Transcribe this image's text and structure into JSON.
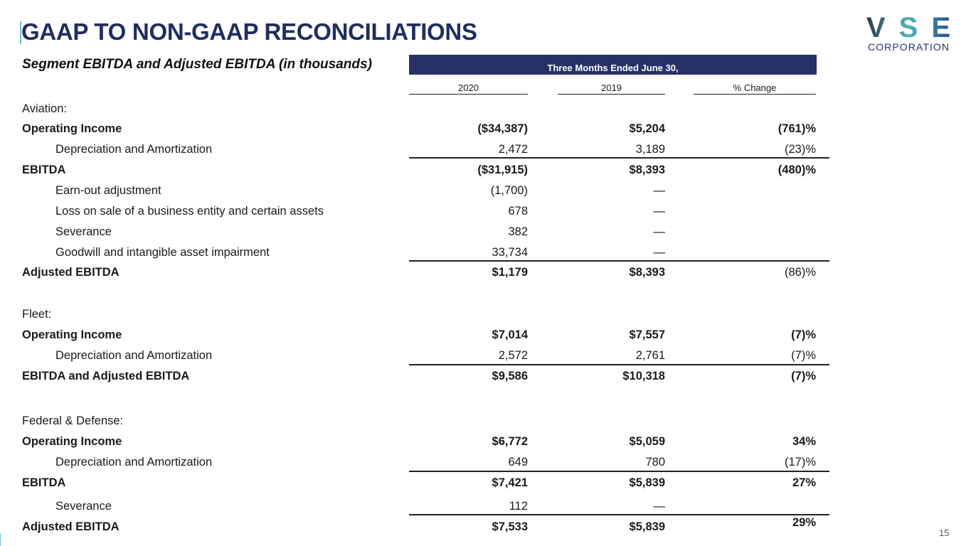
{
  "header": {
    "title": "GAAP TO NON-GAAP RECONCILIATIONS",
    "subtitle": "Segment EBITDA and Adjusted EBITDA (in thousands)",
    "period": "Three Months Ended June 30,"
  },
  "logo": {
    "name": "VSE",
    "sub": "CORPORATION"
  },
  "columns": [
    "2020",
    "2019",
    "% Change"
  ],
  "rows": [
    {
      "label": "Aviation:",
      "values": [
        "",
        "",
        ""
      ]
    },
    {
      "label": "Operating Income",
      "bold": true,
      "values": [
        "($34,387)",
        "$5,204",
        "(761)%"
      ]
    },
    {
      "label": "Depreciation and Amortization",
      "indent": true,
      "values": [
        "2,472",
        "3,189",
        "(23)%"
      ]
    },
    {
      "label": "EBITDA",
      "bold": true,
      "values": [
        "($31,915)",
        "$8,393",
        "(480)%"
      ]
    },
    {
      "label": "Earn-out adjustment",
      "indent": true,
      "values": [
        "(1,700)",
        "—",
        ""
      ]
    },
    {
      "label": "Loss on sale of a business entity and certain assets",
      "indent": true,
      "values": [
        "678",
        "—",
        ""
      ]
    },
    {
      "label": "Severance",
      "indent": true,
      "values": [
        "382",
        "—",
        ""
      ]
    },
    {
      "label": "Goodwill and intangible asset impairment",
      "indent": true,
      "values": [
        "33,734",
        "—",
        ""
      ]
    },
    {
      "label": "Adjusted EBITDA",
      "bold": true,
      "values": [
        "$1,179",
        "$8,393",
        "(86)%"
      ]
    },
    {
      "label": "Fleet:",
      "values": [
        "",
        "",
        ""
      ]
    },
    {
      "label": "Operating Income",
      "bold": true,
      "values": [
        "$7,014",
        "$7,557",
        "(7)%"
      ]
    },
    {
      "label": "Depreciation and Amortization",
      "indent": true,
      "values": [
        "2,572",
        "2,761",
        "(7)%"
      ]
    },
    {
      "label": "EBITDA and Adjusted EBITDA",
      "bold": true,
      "values": [
        "$9,586",
        "$10,318",
        "(7)%"
      ]
    },
    {
      "label": "Federal & Defense:",
      "values": [
        "",
        "",
        ""
      ]
    },
    {
      "label": "Operating Income",
      "bold": true,
      "values": [
        "$6,772",
        "$5,059",
        "34%"
      ]
    },
    {
      "label": "Depreciation and Amortization",
      "indent": true,
      "values": [
        "649",
        "780",
        "(17)%"
      ]
    },
    {
      "label": "EBITDA",
      "bold": true,
      "values": [
        "$7,421",
        "$5,839",
        "27%"
      ]
    },
    {
      "label": "Severance",
      "indent": true,
      "values": [
        "112",
        "—",
        ""
      ]
    },
    {
      "label": "Adjusted EBITDA",
      "bold": true,
      "values": [
        "$7,533",
        "$5,839",
        "29%"
      ]
    }
  ],
  "page_number": "15"
}
